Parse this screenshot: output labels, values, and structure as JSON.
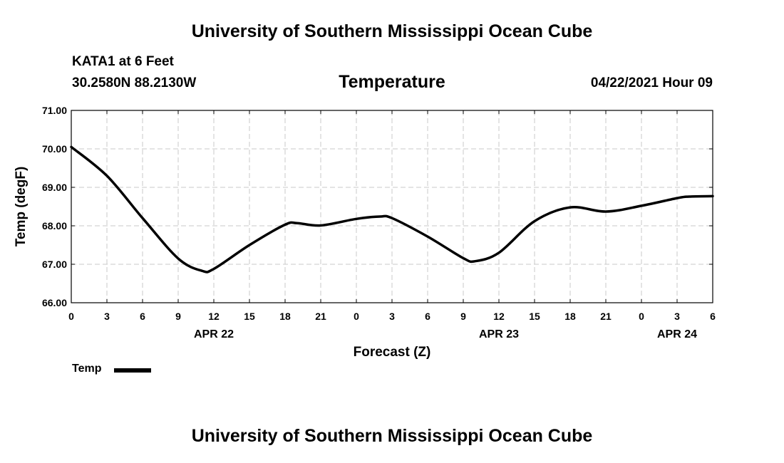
{
  "header": {
    "title": "University of Southern Mississippi Ocean Cube",
    "station": "KATA1 at 6 Feet",
    "coordinates": "30.2580N  88.2130W",
    "variable": "Temperature",
    "datetime": "04/22/2021 Hour 09"
  },
  "footer": {
    "title": "University of Southern Mississippi Ocean Cube"
  },
  "legend": {
    "label": "Temp",
    "color": "#000000"
  },
  "chart_data": {
    "type": "line",
    "title": "Temperature",
    "xlabel": "Forecast (Z)",
    "ylabel": "Temp (degF)",
    "ylim": [
      66.0,
      71.0
    ],
    "yticks": [
      "66.00",
      "67.00",
      "68.00",
      "69.00",
      "70.00",
      "71.00"
    ],
    "xlim": [
      0,
      54
    ],
    "xtick_hours": [
      0,
      3,
      6,
      9,
      12,
      15,
      18,
      21,
      24,
      27,
      30,
      33,
      36,
      39,
      42,
      45,
      48,
      51,
      54
    ],
    "xtick_labels": [
      "0",
      "3",
      "6",
      "9",
      "12",
      "15",
      "18",
      "21",
      "0",
      "3",
      "6",
      "9",
      "12",
      "15",
      "18",
      "21",
      "0",
      "3",
      "6"
    ],
    "date_labels": [
      {
        "hour": 12,
        "label": "APR 22"
      },
      {
        "hour": 36,
        "label": "APR 23"
      },
      {
        "hour": 51,
        "label": "APR 24"
      }
    ],
    "grid": true,
    "series": [
      {
        "name": "Temp",
        "color": "#000000",
        "x": [
          0,
          3,
          6,
          9,
          11,
          12,
          15,
          18,
          19,
          21,
          24,
          26,
          27,
          30,
          33,
          34,
          36,
          39,
          42,
          45,
          48,
          51,
          52,
          54
        ],
        "values": [
          70.05,
          69.3,
          68.2,
          67.15,
          66.83,
          66.88,
          67.5,
          68.03,
          68.07,
          68.01,
          68.18,
          68.24,
          68.2,
          67.72,
          67.16,
          67.08,
          67.3,
          68.12,
          68.48,
          68.37,
          68.52,
          68.72,
          68.76,
          68.77
        ]
      }
    ]
  }
}
